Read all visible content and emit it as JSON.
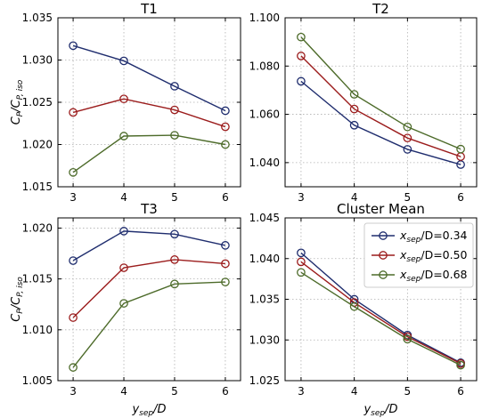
{
  "chart_data": [
    {
      "type": "line",
      "title": "T1",
      "x": [
        3,
        4,
        5,
        6
      ],
      "xlabel": "",
      "ylabel": "C_P/C_P,iso",
      "ylim": [
        1.015,
        1.035
      ],
      "yticks": [
        "1.015",
        "1.020",
        "1.025",
        "1.030",
        "1.035"
      ],
      "grid": true,
      "series": [
        {
          "name": "x_sep/D=0.34",
          "color": "#1f2d6e",
          "values": [
            1.0317,
            1.0299,
            1.0269,
            1.024
          ]
        },
        {
          "name": "x_sep/D=0.50",
          "color": "#9b1c1c",
          "values": [
            1.0238,
            1.0254,
            1.0241,
            1.0221
          ]
        },
        {
          "name": "x_sep/D=0.68",
          "color": "#4d6b2a",
          "values": [
            1.0167,
            1.021,
            1.0211,
            1.02
          ]
        }
      ]
    },
    {
      "type": "line",
      "title": "T2",
      "x": [
        3,
        4,
        5,
        6
      ],
      "xlabel": "",
      "ylabel": "",
      "ylim": [
        1.03,
        1.1
      ],
      "yticks": [
        "1.040",
        "1.060",
        "1.080",
        "1.100"
      ],
      "grid": true,
      "series": [
        {
          "name": "x_sep/D=0.34",
          "color": "#1f2d6e",
          "values": [
            1.0737,
            1.0555,
            1.0455,
            1.0392
          ]
        },
        {
          "name": "x_sep/D=0.50",
          "color": "#9b1c1c",
          "values": [
            1.0842,
            1.0622,
            1.0502,
            1.0425
          ]
        },
        {
          "name": "x_sep/D=0.68",
          "color": "#4d6b2a",
          "values": [
            1.092,
            1.0683,
            1.0548,
            1.0456
          ]
        }
      ]
    },
    {
      "type": "line",
      "title": "T3",
      "x": [
        3,
        4,
        5,
        6
      ],
      "xlabel": "y_sep/D",
      "ylabel": "C_P/C_P,iso",
      "ylim": [
        1.005,
        1.021
      ],
      "yticks": [
        "1.005",
        "1.010",
        "1.015",
        "1.020"
      ],
      "grid": true,
      "series": [
        {
          "name": "x_sep/D=0.34",
          "color": "#1f2d6e",
          "values": [
            1.0168,
            1.0197,
            1.0194,
            1.0183
          ]
        },
        {
          "name": "x_sep/D=0.50",
          "color": "#9b1c1c",
          "values": [
            1.0112,
            1.0161,
            1.0169,
            1.0165
          ]
        },
        {
          "name": "x_sep/D=0.68",
          "color": "#4d6b2a",
          "values": [
            1.0063,
            1.0126,
            1.0145,
            1.0147
          ]
        }
      ]
    },
    {
      "type": "line",
      "title": "Cluster Mean",
      "x": [
        3,
        4,
        5,
        6
      ],
      "xlabel": "y_sep/D",
      "ylabel": "",
      "ylim": [
        1.025,
        1.045
      ],
      "yticks": [
        "1.025",
        "1.030",
        "1.035",
        "1.040",
        "1.045"
      ],
      "grid": true,
      "legend": "top-right",
      "series": [
        {
          "name": "x_sep/D=0.34",
          "color": "#1f2d6e",
          "values": [
            1.0407,
            1.035,
            1.0306,
            1.0272
          ]
        },
        {
          "name": "x_sep/D=0.50",
          "color": "#9b1c1c",
          "values": [
            1.0396,
            1.0346,
            1.0304,
            1.0271
          ]
        },
        {
          "name": "x_sep/D=0.68",
          "color": "#4d6b2a",
          "values": [
            1.0383,
            1.0341,
            1.0301,
            1.0269
          ]
        }
      ]
    }
  ],
  "xticks": [
    "3",
    "4",
    "5",
    "6"
  ],
  "legend_entries": [
    {
      "prefix": "x",
      "sub": "sep",
      "suffix": "/D=0.34",
      "color": "#1f2d6e"
    },
    {
      "prefix": "x",
      "sub": "sep",
      "suffix": "/D=0.50",
      "color": "#9b1c1c"
    },
    {
      "prefix": "x",
      "sub": "sep",
      "suffix": "/D=0.68",
      "color": "#4d6b2a"
    }
  ],
  "ylabel_text": {
    "main": "C",
    "sub1": "P",
    "slash": "/C",
    "sub2": "P, iso"
  },
  "xlabel_text": {
    "main": "y",
    "sub": "sep",
    "suffix": "/D"
  }
}
